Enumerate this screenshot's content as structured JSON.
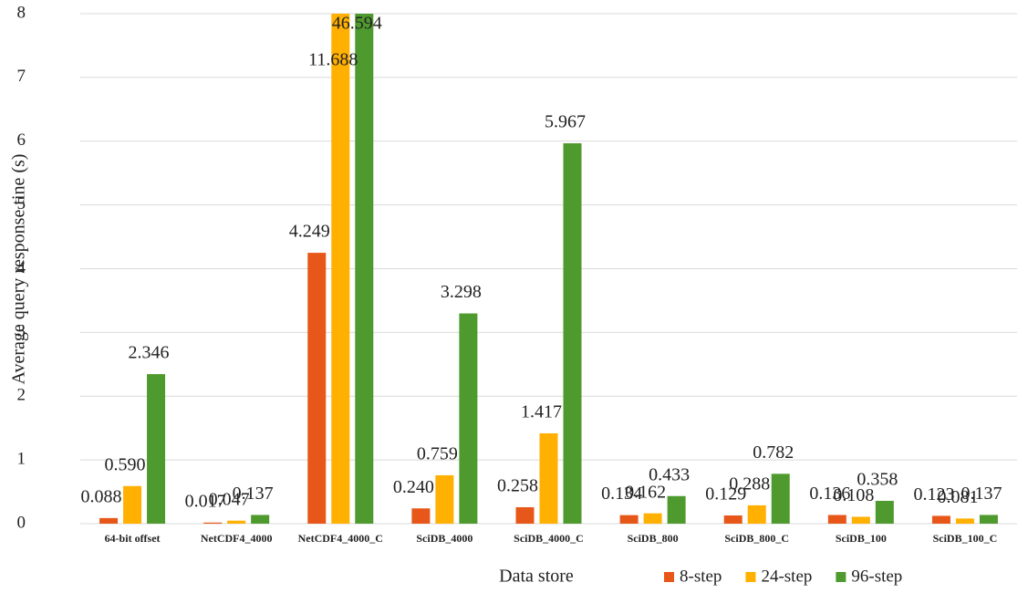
{
  "chart_data": {
    "type": "bar",
    "y_label": "Average query response tine (s)",
    "x_label": "Data store",
    "categories": [
      "64-bit offset",
      "NetCDF4_4000",
      "NetCDF4_4000_C",
      "SciDB_4000",
      "SciDB_4000_C",
      "SciDB_800",
      "SciDB_800_C",
      "SciDB_100",
      "SciDB_100_C"
    ],
    "series": [
      {
        "name": "8-step",
        "color": "#e8571a",
        "values": [
          0.088,
          0.017,
          4.249,
          0.24,
          0.258,
          0.134,
          0.129,
          0.136,
          0.123
        ],
        "value_labels": [
          "0.088",
          "0.017",
          "4.249",
          "0.240",
          "0.258",
          "0.134",
          "0.129",
          "0.136",
          "0.123"
        ]
      },
      {
        "name": "24-step",
        "color": "#ffb000",
        "values": [
          0.59,
          0.047,
          11.688,
          0.759,
          1.417,
          0.162,
          0.288,
          0.108,
          0.081
        ],
        "value_labels": [
          "0.590",
          "0.047",
          "11.688",
          "0.759",
          "1.417",
          "0.162",
          "0.288",
          "0.108",
          "0.081"
        ]
      },
      {
        "name": "96-step",
        "color": "#4e9a2e",
        "values": [
          2.346,
          0.137,
          46.594,
          3.298,
          5.967,
          0.433,
          0.782,
          0.358,
          0.137
        ],
        "value_labels": [
          "2.346",
          "0.137",
          "46.594",
          "3.298",
          "5.967",
          "0.433",
          "0.782",
          "0.358",
          "0.137"
        ]
      }
    ],
    "ylim": [
      0,
      8
    ],
    "yticks": [
      0,
      1,
      2,
      3,
      4,
      5,
      6,
      7,
      8
    ],
    "grid": true,
    "legend": "bottom"
  }
}
